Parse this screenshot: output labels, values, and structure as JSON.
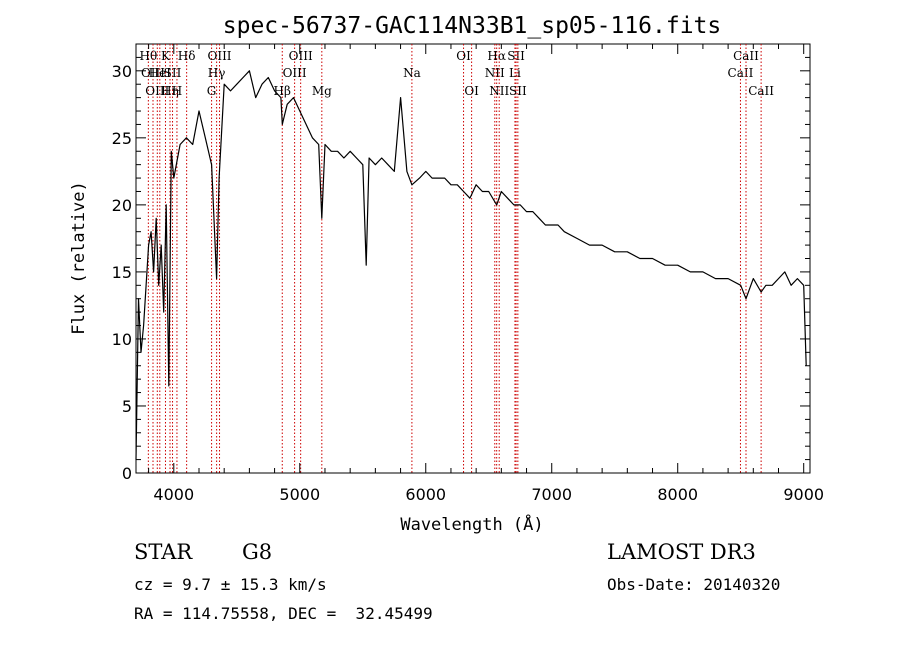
{
  "chart_data": {
    "type": "line",
    "title": "spec-56737-GAC114N33B1_sp05-116.fits",
    "xlabel": "Wavelength (Å)",
    "ylabel": "Flux (relative)",
    "xlim": [
      3700,
      9050
    ],
    "ylim": [
      0,
      32
    ],
    "x_ticks": [
      4000,
      5000,
      6000,
      7000,
      8000,
      9000
    ],
    "y_ticks": [
      0,
      5,
      10,
      15,
      20,
      25,
      30
    ],
    "grid": false,
    "line_color": "#000000",
    "marker_color": "#cc0000",
    "series": [
      {
        "x": [
          3700,
          3720,
          3740,
          3760,
          3780,
          3800,
          3820,
          3840,
          3860,
          3880,
          3900,
          3920,
          3940,
          3960,
          3980,
          4000,
          4050,
          4100,
          4150,
          4200,
          4250,
          4300,
          4340,
          4360,
          4400,
          4450,
          4500,
          4550,
          4600,
          4650,
          4700,
          4750,
          4800,
          4850,
          4861,
          4900,
          4950,
          5000,
          5050,
          5100,
          5150,
          5175,
          5200,
          5250,
          5300,
          5350,
          5400,
          5450,
          5500,
          5527,
          5550,
          5600,
          5650,
          5700,
          5750,
          5800,
          5850,
          5890,
          5950,
          6000,
          6050,
          6100,
          6150,
          6200,
          6250,
          6300,
          6350,
          6400,
          6450,
          6500,
          6563,
          6600,
          6650,
          6700,
          6750,
          6800,
          6850,
          6900,
          6950,
          7000,
          7050,
          7100,
          7200,
          7300,
          7400,
          7500,
          7600,
          7700,
          7800,
          7900,
          8000,
          8100,
          8200,
          8300,
          8400,
          8500,
          8542,
          8600,
          8662,
          8700,
          8750,
          8800,
          8850,
          8900,
          8950,
          9000,
          9020
        ],
        "y": [
          1,
          13,
          9,
          11,
          14,
          17,
          18,
          15,
          19,
          14,
          17,
          12,
          20,
          6.5,
          24,
          22,
          24.5,
          25,
          24.5,
          27,
          25,
          23,
          14.5,
          22,
          29,
          28.5,
          29,
          29.5,
          30,
          28,
          29,
          29.5,
          28.5,
          28,
          26,
          27.5,
          28,
          27,
          26,
          25,
          24.5,
          19,
          24.5,
          24,
          24,
          23.5,
          24,
          23.5,
          23,
          15.5,
          23.5,
          23,
          23.5,
          23,
          22.5,
          28,
          22.5,
          21.5,
          22,
          22.5,
          22,
          22,
          22,
          21.5,
          21.5,
          21,
          20.5,
          21.5,
          21,
          21,
          20,
          21,
          20.5,
          20,
          20,
          19.5,
          19.5,
          19,
          18.5,
          18.5,
          18.5,
          18,
          17.5,
          17,
          17,
          16.5,
          16.5,
          16,
          16,
          15.5,
          15.5,
          15,
          15,
          14.5,
          14.5,
          14,
          13,
          14.5,
          13.5,
          14,
          14,
          14.5,
          15,
          14,
          14.5,
          14,
          8
        ]
      }
    ],
    "line_markers": [
      {
        "x": 3798,
        "label": "Hθ",
        "row": 0
      },
      {
        "x": 3835,
        "label": "OIII",
        "row": 1
      },
      {
        "x": 3869,
        "label": "OIII",
        "row": 2
      },
      {
        "x": 3889,
        "label": "HeI",
        "row": 1
      },
      {
        "x": 3934,
        "label": "K",
        "row": 0
      },
      {
        "x": 3970,
        "label": "Hη",
        "row": 2
      },
      {
        "x": 3990,
        "label": "SII",
        "row": 1
      },
      {
        "x": 4025,
        "label": "H",
        "row": 2
      },
      {
        "x": 4102,
        "label": "Hδ",
        "row": 0
      },
      {
        "x": 4300,
        "label": "G",
        "row": 2
      },
      {
        "x": 4340,
        "label": "Hγ",
        "row": 1
      },
      {
        "x": 4363,
        "label": "OIII",
        "row": 0
      },
      {
        "x": 4861,
        "label": "Hβ",
        "row": 2
      },
      {
        "x": 4959,
        "label": "OIII",
        "row": 1
      },
      {
        "x": 5007,
        "label": "OIII",
        "row": 0
      },
      {
        "x": 5175,
        "label": "Mg",
        "row": 2
      },
      {
        "x": 5890,
        "label": "Na",
        "row": 1
      },
      {
        "x": 6300,
        "label": "OI",
        "row": 0
      },
      {
        "x": 6364,
        "label": "OI",
        "row": 2
      },
      {
        "x": 6548,
        "label": "NII",
        "row": 1
      },
      {
        "x": 6563,
        "label": "Hα",
        "row": 0
      },
      {
        "x": 6583,
        "label": "NII",
        "row": 2
      },
      {
        "x": 6708,
        "label": "Li",
        "row": 1
      },
      {
        "x": 6717,
        "label": "SII",
        "row": 0
      },
      {
        "x": 6731,
        "label": "SII",
        "row": 2
      },
      {
        "x": 8498,
        "label": "CaII",
        "row": 1
      },
      {
        "x": 8542,
        "label": "CaII",
        "row": 0
      },
      {
        "x": 8662,
        "label": "CaII",
        "row": 2
      }
    ]
  },
  "info": {
    "class_label": "STAR",
    "subclass": "G8",
    "survey": "LAMOST DR3",
    "redshift_line": "cz = 9.7 ± 15.3 km/s",
    "obs_date_line": "Obs-Date: 20140320",
    "coords_line": "RA = 114.75558, DEC =  32.45499"
  }
}
